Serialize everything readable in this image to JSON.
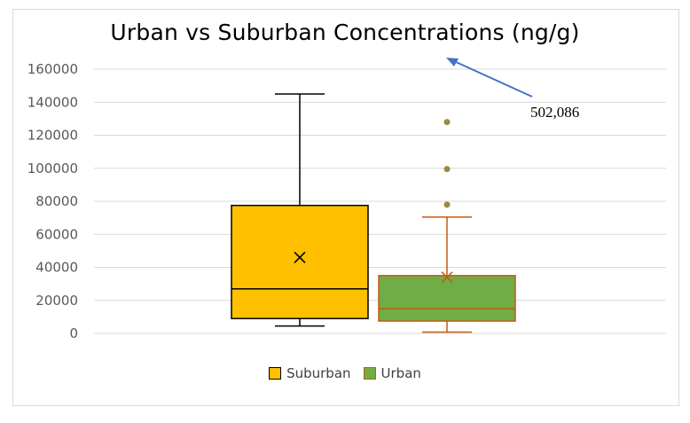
{
  "chart_data": {
    "type": "boxplot",
    "title": "Urban vs Suburban Concentrations (ng/g)",
    "xlabel": "",
    "ylabel": "",
    "ylim": [
      0,
      160000
    ],
    "yticks": [
      0,
      20000,
      40000,
      60000,
      80000,
      100000,
      120000,
      140000,
      160000
    ],
    "ytick_labels": [
      "0",
      "20000",
      "40000",
      "60000",
      "80000",
      "100000",
      "120000",
      "140000",
      "160000"
    ],
    "grid": true,
    "legend_position": "bottom",
    "series": [
      {
        "name": "Suburban",
        "color": "#FFC000",
        "edge_color": "#000000",
        "min": 4500,
        "q1": 9000,
        "median": 27000,
        "q3": 77500,
        "max": 145000,
        "mean": 46000,
        "outliers": []
      },
      {
        "name": "Urban",
        "color": "#70AD47",
        "edge_color": "#C55A11",
        "min": 800,
        "q1": 7500,
        "median": 15000,
        "q3": 35000,
        "max": 70500,
        "mean": 34000,
        "outliers": [
          78000,
          99500,
          128000
        ]
      }
    ],
    "annotations": [
      {
        "text": "502,086",
        "arrow_target_value": 166000
      }
    ]
  },
  "legend": {
    "items": [
      "Suburban",
      "Urban"
    ]
  }
}
